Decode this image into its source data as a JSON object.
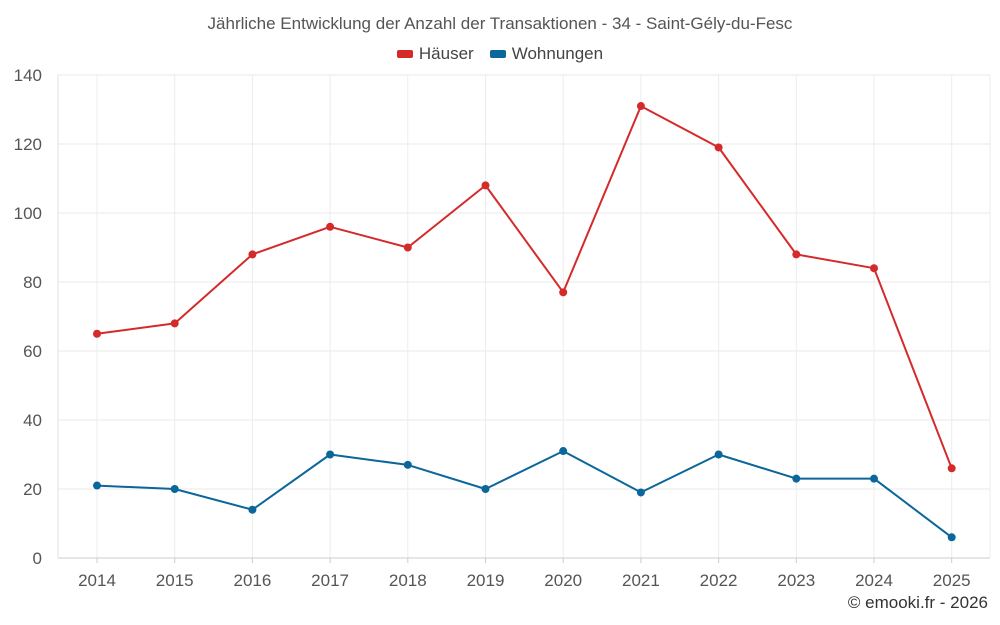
{
  "chart_data": {
    "type": "line",
    "title": "Jährliche Entwicklung der Anzahl der Transaktionen - 34 - Saint-Gély-du-Fesc",
    "categories": [
      "2014",
      "2015",
      "2016",
      "2017",
      "2018",
      "2019",
      "2020",
      "2021",
      "2022",
      "2023",
      "2024",
      "2025"
    ],
    "series": [
      {
        "name": "Häuser",
        "color": "#d42a2a",
        "values": [
          65,
          68,
          88,
          96,
          90,
          108,
          77,
          131,
          119,
          88,
          84,
          26
        ]
      },
      {
        "name": "Wohnungen",
        "color": "#0b6699",
        "values": [
          21,
          20,
          14,
          30,
          27,
          20,
          31,
          19,
          30,
          23,
          23,
          6
        ]
      }
    ],
    "yticks": [
      0,
      20,
      40,
      60,
      80,
      100,
      120,
      140
    ],
    "ylim": [
      0,
      140
    ],
    "xlabel": "",
    "ylabel": "",
    "grid": true,
    "legend_position": "top-center"
  },
  "footer": {
    "credit": "© emooki.fr - 2026"
  }
}
